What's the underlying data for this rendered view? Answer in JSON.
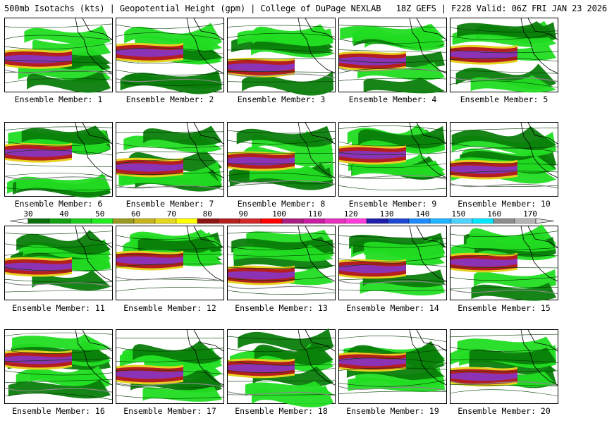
{
  "title": "500mb Isotachs (kts) | Geopotential Height (gpm) | College of DuPage NEXLAB   18Z GEFS | F228 Valid: 06Z FRI JAN 23 2026",
  "panel_label_prefix": "Ensemble Member: ",
  "members": [
    1,
    2,
    3,
    4,
    5,
    6,
    7,
    8,
    9,
    10,
    11,
    12,
    13,
    14,
    15,
    16,
    17,
    18,
    19,
    20
  ],
  "scale": {
    "ticks": [
      "30",
      "40",
      "50",
      "60",
      "70",
      "80",
      "90",
      "100",
      "110",
      "120",
      "130",
      "140",
      "150",
      "160",
      "170"
    ],
    "colors": [
      "#0a6e0a",
      "#12a012",
      "#1ccc1c",
      "#22ee22",
      "#9a9a22",
      "#c8b41e",
      "#e6d81e",
      "#ffff00",
      "#8c1414",
      "#b41e1e",
      "#d22828",
      "#ff0000",
      "#aa1e82",
      "#c81ea0",
      "#e632be",
      "#ff3cdc",
      "#1e1eaa",
      "#1e46d2",
      "#1e8cff",
      "#1eb4ff",
      "#50d2ff",
      "#00e6ff",
      "#8c8c8c",
      "#b4b4b4"
    ]
  },
  "colors": {
    "green_dark": "#0a7d0a",
    "green_light": "#22dd22",
    "yellow": "#e6d21e",
    "red": "#b41e1e",
    "purple": "#8c32b4",
    "height_contour": "#888888",
    "coast": "#000000"
  }
}
